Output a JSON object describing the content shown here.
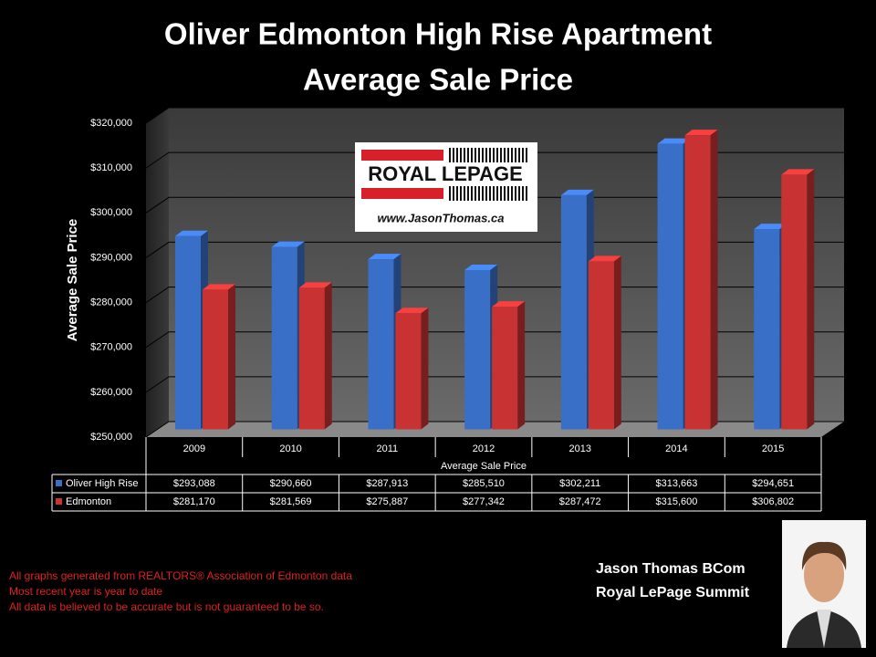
{
  "chart_data": {
    "type": "bar3d",
    "title": [
      "Oliver Edmonton High Rise Apartment",
      "Average Sale Price"
    ],
    "y_label": "Average Sale Price",
    "x_label": "Average Sale Price",
    "categories": [
      "2009",
      "2010",
      "2011",
      "2012",
      "2013",
      "2014",
      "2015"
    ],
    "series": [
      {
        "name": "Oliver High Rise",
        "color": "#3a6fc8",
        "values": [
          293088,
          290660,
          287913,
          285510,
          302211,
          313663,
          294651
        ],
        "value_labels": [
          "$293,088",
          "$290,660",
          "$287,913",
          "$285,510",
          "$302,211",
          "$313,663",
          "$294,651"
        ]
      },
      {
        "name": "Edmonton",
        "color": "#c83232",
        "values": [
          281170,
          281569,
          275887,
          277342,
          287472,
          315600,
          306802
        ],
        "value_labels": [
          "$281,170",
          "$281,569",
          "$275,887",
          "$277,342",
          "$287,472",
          "$315,600",
          "$306,802"
        ]
      }
    ],
    "ylim": [
      250000,
      320000
    ],
    "yticks": [
      {
        "value": 250000,
        "label": "$250,000"
      },
      {
        "value": 260000,
        "label": "$260,000"
      },
      {
        "value": 270000,
        "label": "$270,000"
      },
      {
        "value": 280000,
        "label": "$280,000"
      },
      {
        "value": 290000,
        "label": "$290,000"
      },
      {
        "value": 300000,
        "label": "$300,000"
      },
      {
        "value": 310000,
        "label": "$310,000"
      },
      {
        "value": 320000,
        "label": "$320,000"
      }
    ],
    "grid": true
  },
  "logo": {
    "brand": "ROYAL LEPAGE",
    "url": "www.JasonThomas.ca"
  },
  "footnotes": [
    "All graphs generated from REALTORS® Association of Edmonton data",
    "Most recent year is year to date",
    "All data is believed to be accurate but is not guaranteed to be so."
  ],
  "agent": {
    "name": "Jason Thomas BCom",
    "company": "Royal LePage Summit"
  }
}
